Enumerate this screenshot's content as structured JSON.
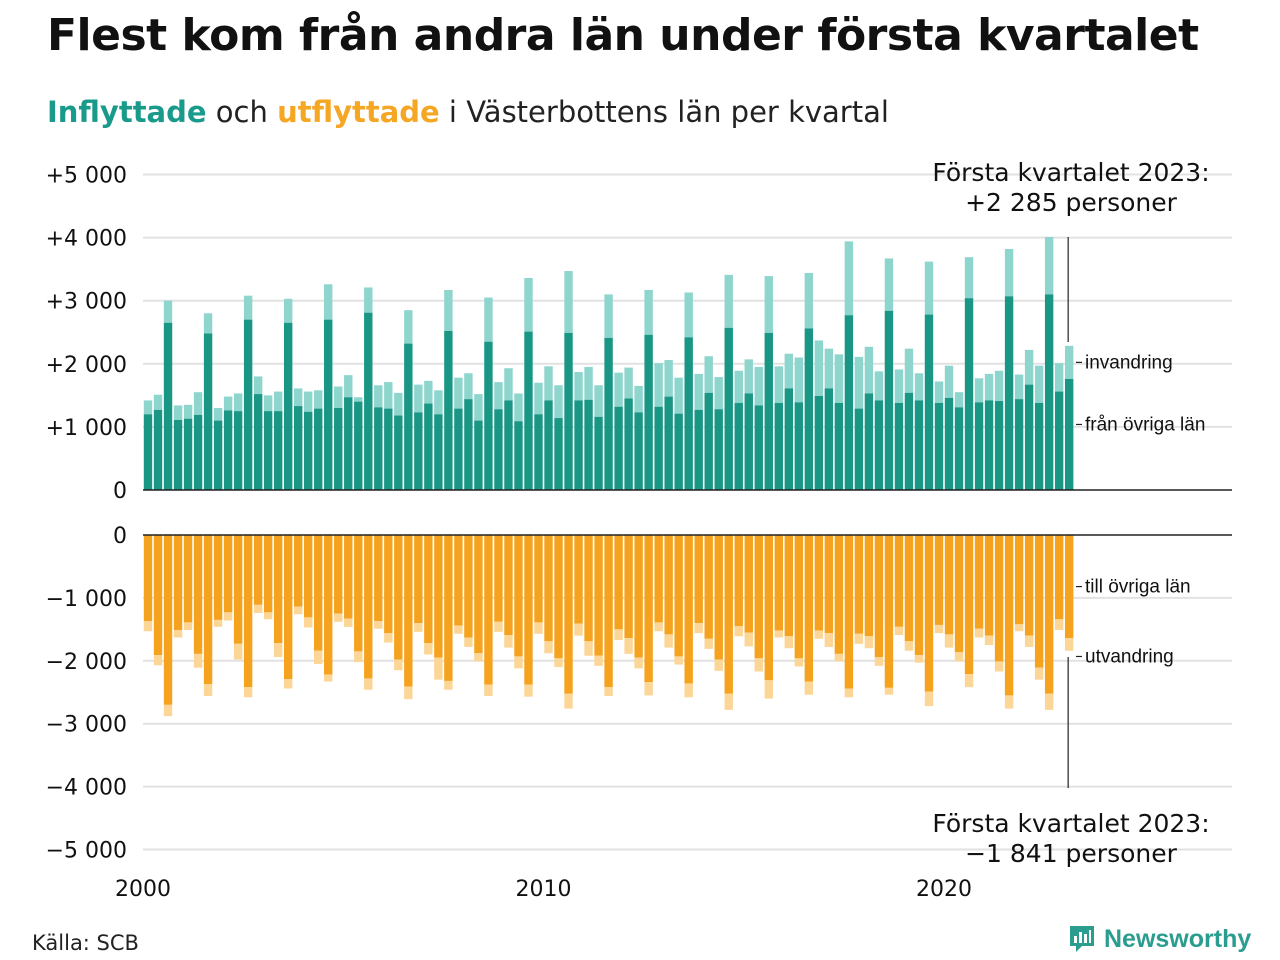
{
  "title": "Flest kom från andra län under första kvartalet",
  "subtitle": {
    "in_word": "Inflyttade",
    "and_word": " och ",
    "out_word": "utflyttade",
    "rest": " i Västerbottens län per kvartal"
  },
  "source": "Källa: SCB",
  "logo": {
    "text": "Newsworthy",
    "icon": "newsworthy-bars-icon"
  },
  "colors": {
    "in_dark": "#1a9685",
    "in_light": "#8ed5cd",
    "out_dark": "#f5a31f",
    "out_light": "#fbd696",
    "brand": "#2a9d8f"
  },
  "chart_data": {
    "type": "bar",
    "stacked": true,
    "grid": true,
    "x_ticks": [
      "2000",
      "2010",
      "2020"
    ],
    "top": {
      "ylim": [
        0,
        5000
      ],
      "y_ticks": [
        "0",
        "+1 000",
        "+2 000",
        "+3 000",
        "+4 000",
        "+5 000"
      ],
      "series_labels": [
        "invandring",
        "från övriga län"
      ],
      "annotation": [
        "Första kvartalet 2023:",
        "+2 285 personer"
      ]
    },
    "bottom": {
      "ylim": [
        -5000,
        0
      ],
      "y_ticks": [
        "0",
        "−1 000",
        "−2 000",
        "−3 000",
        "−4 000",
        "−5 000"
      ],
      "series_labels": [
        "till övriga län",
        "utvandring"
      ],
      "annotation": [
        "Första kvartalet 2023:",
        "−1 841 personer"
      ]
    },
    "quarters": {
      "start": "2000 Q1",
      "inflow_other_counties": [
        1200,
        1270,
        2650,
        1110,
        1130,
        1190,
        2480,
        1100,
        1260,
        1250,
        2700,
        1520,
        1250,
        1250,
        2650,
        1330,
        1240,
        1290,
        2700,
        1300,
        1470,
        1400,
        2810,
        1310,
        1290,
        1180,
        2320,
        1230,
        1370,
        1200,
        2520,
        1290,
        1440,
        1100,
        2350,
        1280,
        1420,
        1090,
        2510,
        1200,
        1420,
        1140,
        2490,
        1420,
        1430,
        1160,
        2410,
        1320,
        1450,
        1230,
        2460,
        1320,
        1480,
        1210,
        2420,
        1270,
        1540,
        1280,
        2570,
        1380,
        1530,
        1340,
        2490,
        1380,
        1610,
        1390,
        2560,
        1490,
        1610,
        1380,
        2770,
        1290,
        1530,
        1420,
        2840,
        1380,
        1540,
        1420,
        2780,
        1380,
        1460,
        1310,
        3040,
        1390,
        1420,
        1410,
        3070,
        1440,
        1670,
        1380,
        3100,
        1560,
        1760
      ],
      "inflow_total": [
        1420,
        1510,
        3000,
        1340,
        1350,
        1550,
        2800,
        1300,
        1480,
        1530,
        3080,
        1800,
        1500,
        1560,
        3030,
        1610,
        1560,
        1580,
        3260,
        1640,
        1820,
        1470,
        3210,
        1660,
        1710,
        1540,
        2850,
        1670,
        1730,
        1580,
        3170,
        1780,
        1850,
        1520,
        3050,
        1710,
        1930,
        1530,
        3360,
        1700,
        1960,
        1660,
        3470,
        1870,
        1950,
        1660,
        3100,
        1860,
        1940,
        1650,
        3170,
        2010,
        2060,
        1780,
        3130,
        1840,
        2120,
        1790,
        3410,
        1890,
        2070,
        1950,
        3390,
        1960,
        2160,
        2100,
        3440,
        2370,
        2240,
        2150,
        3940,
        2110,
        2270,
        1880,
        3670,
        1910,
        2240,
        1850,
        3620,
        1720,
        1970,
        1550,
        3690,
        1770,
        1840,
        1890,
        3820,
        1830,
        2220,
        1970,
        4010,
        2010,
        2285
      ]
    },
    "outflow_quarters": {
      "start": "2000 Q1",
      "outflow_other_counties": [
        1370,
        1910,
        2700,
        1510,
        1390,
        1890,
        2370,
        1350,
        1230,
        1730,
        2420,
        1110,
        1230,
        1720,
        2290,
        1140,
        1310,
        1840,
        2220,
        1250,
        1330,
        1850,
        2280,
        1370,
        1560,
        1980,
        2410,
        1400,
        1720,
        1950,
        2320,
        1440,
        1630,
        1880,
        2380,
        1380,
        1590,
        1930,
        2380,
        1390,
        1690,
        1960,
        2520,
        1410,
        1690,
        1920,
        2420,
        1500,
        1640,
        1950,
        2340,
        1390,
        1580,
        1930,
        2360,
        1400,
        1650,
        1980,
        2520,
        1450,
        1550,
        1960,
        2310,
        1520,
        1610,
        1960,
        2330,
        1520,
        1560,
        1890,
        2440,
        1570,
        1610,
        1940,
        2430,
        1460,
        1690,
        1910,
        2490,
        1430,
        1580,
        1860,
        2210,
        1490,
        1600,
        2010,
        2550,
        1420,
        1600,
        2110,
        2520,
        1340,
        1640
      ],
      "outflow_total": [
        1530,
        2070,
        2880,
        1630,
        1510,
        2110,
        2560,
        1460,
        1360,
        1980,
        2580,
        1240,
        1340,
        1940,
        2440,
        1260,
        1470,
        2050,
        2330,
        1380,
        1460,
        2020,
        2460,
        1490,
        1710,
        2150,
        2610,
        1540,
        1900,
        2300,
        2460,
        1570,
        1780,
        2010,
        2560,
        1540,
        1790,
        2120,
        2570,
        1570,
        1880,
        2100,
        2760,
        1600,
        1920,
        2080,
        2560,
        1670,
        1890,
        2120,
        2550,
        1530,
        1790,
        2060,
        2580,
        1560,
        1810,
        2160,
        2780,
        1610,
        1770,
        2170,
        2600,
        1630,
        1800,
        2090,
        2540,
        1650,
        1780,
        2010,
        2580,
        1730,
        1800,
        2080,
        2540,
        1590,
        1840,
        2030,
        2720,
        1560,
        1790,
        2010,
        2420,
        1630,
        1750,
        2170,
        2760,
        1530,
        1780,
        2300,
        2780,
        1510,
        1841
      ]
    }
  }
}
